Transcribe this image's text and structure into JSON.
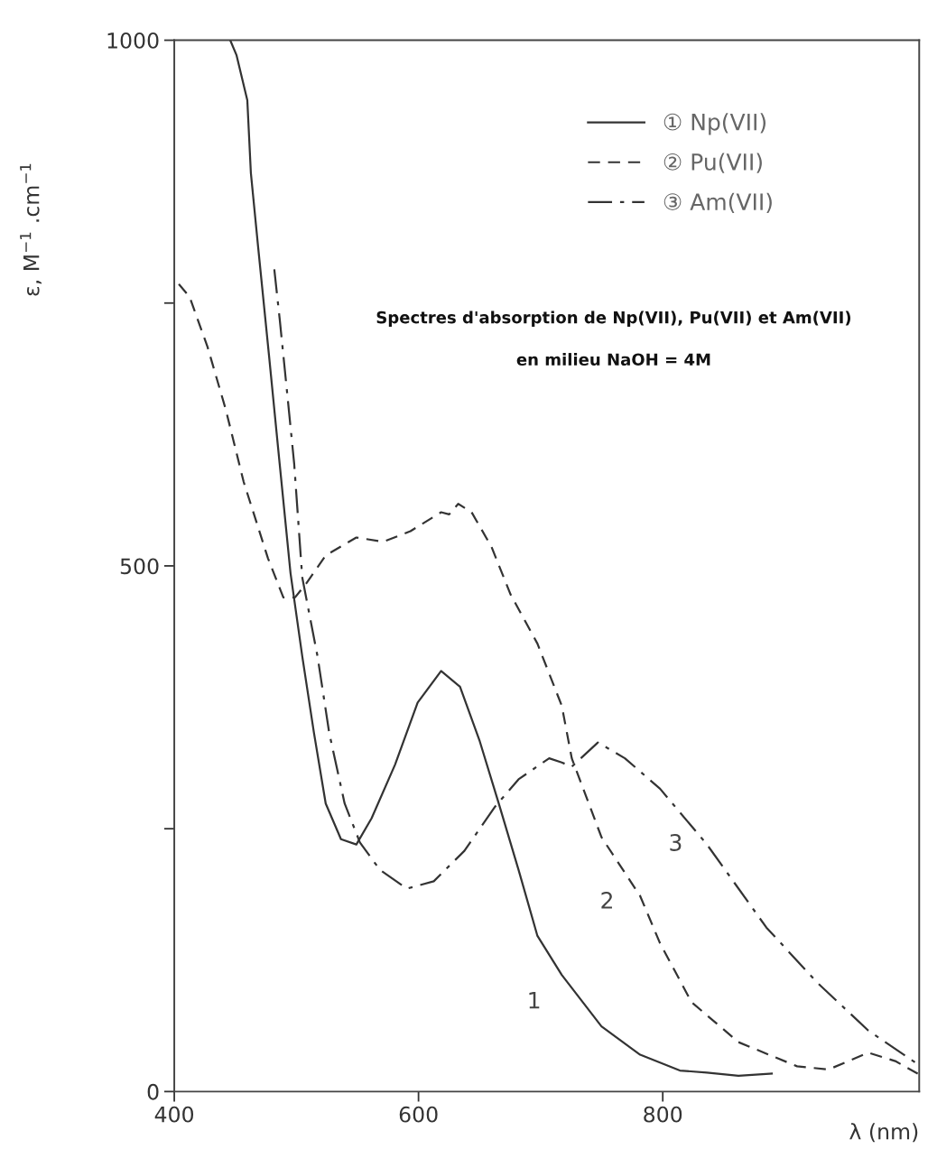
{
  "chart_data": {
    "type": "line",
    "title": "Spectres d'absorption de Np(VII), Pu(VII) et Am(VII)",
    "subtitle": "en milieu NaOH = 4M",
    "xlabel": "λ (nm)",
    "ylabel": "ε, M$^{−1}$ .cm$^{−1}$",
    "xlim": [
      400,
      1010
    ],
    "ylim": [
      0,
      1000
    ],
    "xticks": [
      400,
      600,
      800
    ],
    "yticks": [
      0,
      {
        "value": 250,
        "label": null
      },
      500,
      {
        "value": 750,
        "label": null
      },
      1000
    ],
    "grid": false,
    "legend": "top",
    "marker": "none",
    "series": [
      {
        "name": "① Np(VII)",
        "color": "#333333",
        "line_style": "solid",
        "x": [
          445.8,
          450.9,
          459.8,
          462.7,
          468.6,
          477.5,
          486.3,
          495.2,
          504.8,
          514.4,
          524.0,
          536.5,
          549.1,
          561.6,
          580.8,
          599.3,
          618.5,
          634.0,
          650.2,
          665.7,
          681.9,
          697.4,
          717.3,
          749.8,
          781.5,
          814.0,
          836.2,
          862.0,
          889.3
        ],
        "values": [
          1000,
          986,
          943,
          874,
          804,
          701,
          597,
          493,
          414,
          341,
          274,
          240,
          235,
          260,
          311,
          370,
          400,
          385,
          333,
          274,
          211,
          148,
          111,
          62,
          35,
          20,
          18,
          15,
          17
        ]
      },
      {
        "name": "② Pu(VII)",
        "color": "#333333",
        "line_style": "dashed",
        "x": [
          403.7,
          412.5,
          427.3,
          442.1,
          456.8,
          476.8,
          489.3,
          498.9,
          508.5,
          524.0,
          549.1,
          571.2,
          593.4,
          618.5,
          625.1,
          632.5,
          643.5,
          659.8,
          675.3,
          697.4,
          717.3,
          725.5,
          749.8,
          781.5,
          797.8,
          823.6,
          862.0,
          910.0,
          935.8,
          968.3,
          990.4,
          1008.8
        ],
        "values": [
          768,
          756,
          708,
          649,
          580,
          507,
          470,
          470,
          484,
          510,
          527,
          523,
          533,
          551,
          549,
          559,
          551,
          518,
          473,
          426,
          367,
          317,
          242,
          186,
          141,
          85,
          47,
          24,
          21,
          37,
          29,
          17
        ]
      },
      {
        "name": "③ Am(VII)",
        "color": "#333333",
        "line_style": "dashdot",
        "x": [
          481.9,
          486.3,
          492.3,
          498.2,
          504.8,
          517.3,
          526.9,
          539.5,
          552.0,
          568.3,
          590.4,
          612.5,
          637.6,
          662.7,
          681.9,
          707.0,
          717.3,
          725.5,
          746.9,
          769.0,
          797.8,
          836.2,
          884.9,
          926.2,
          968.3,
          1008.8
        ],
        "values": [
          782,
          735,
          666,
          597,
          489,
          414,
          341,
          274,
          237,
          211,
          193,
          200,
          229,
          271,
          297,
          317,
          313,
          309,
          332,
          317,
          288,
          235,
          156,
          104,
          58,
          26
        ]
      }
    ],
    "annotations": [
      "1",
      "2",
      "3"
    ]
  }
}
